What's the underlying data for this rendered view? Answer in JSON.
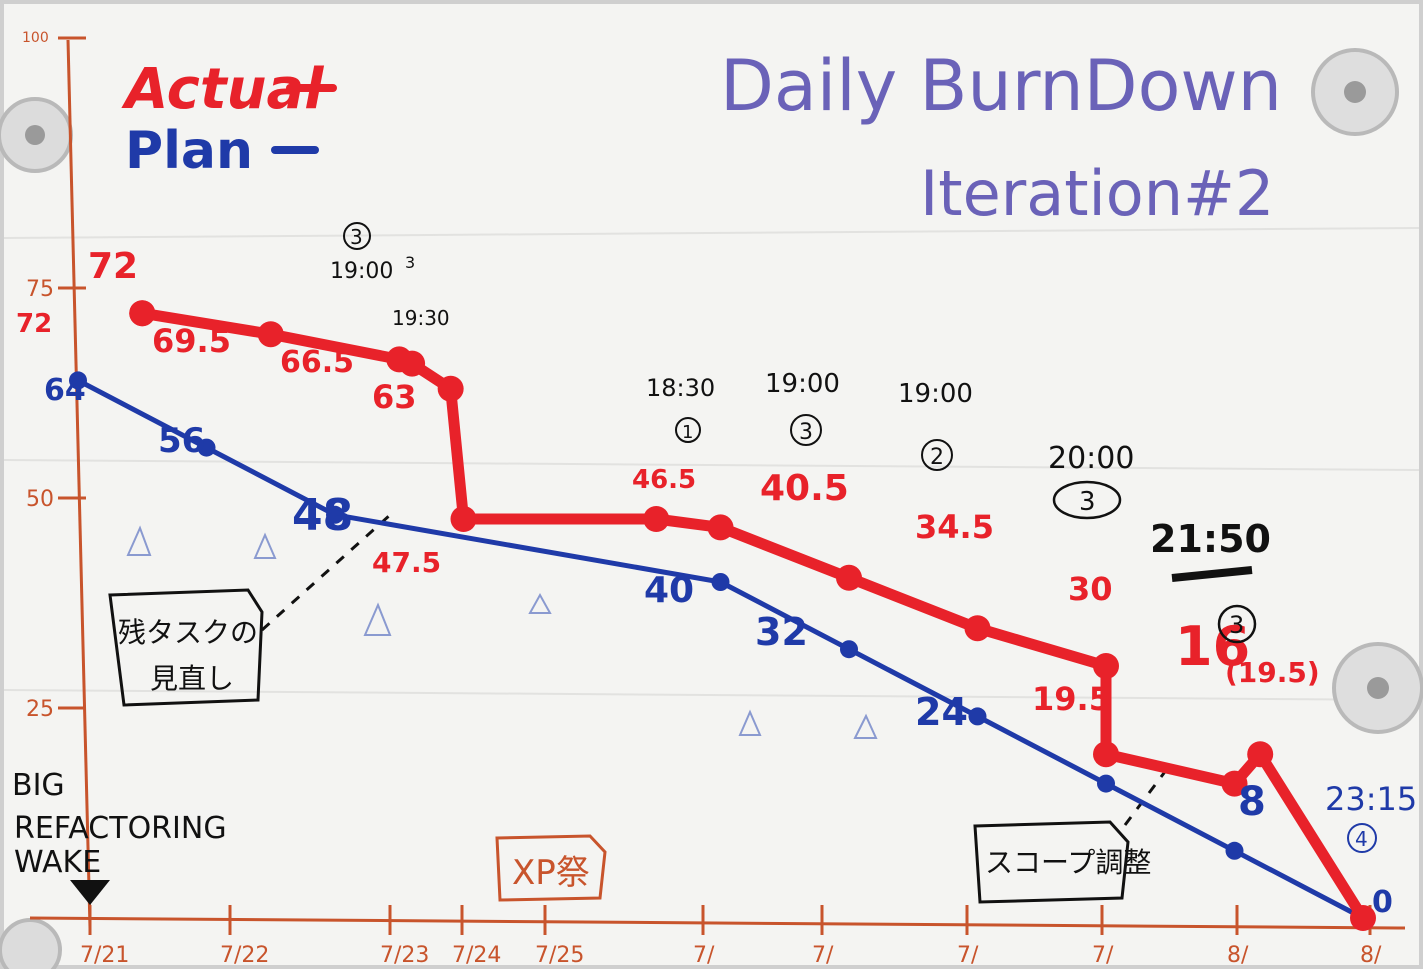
{
  "chart_data": {
    "type": "line",
    "title": "Daily BurnDown",
    "subtitle": "Iteration#2",
    "legend": {
      "position": "top-left",
      "entries": [
        {
          "label": "Actual",
          "color": "#e8222a"
        },
        {
          "label": "Plan",
          "color": "#1f3aa8"
        }
      ]
    },
    "y_ticks": [
      "100",
      "75",
      "50",
      "25"
    ],
    "ylim": [
      0,
      100
    ],
    "x_ticks": [
      "7/21",
      "7/22",
      "7/23",
      "7/24",
      "7/25",
      "7/",
      "7/",
      "7/",
      "7/",
      "8/",
      "8/"
    ],
    "series": [
      {
        "name": "Actual",
        "color": "#e8222a",
        "points": [
          {
            "x": 0.5,
            "y": 72
          },
          {
            "x": 0.5,
            "y": 72
          },
          {
            "x": 1.5,
            "y": 69.5
          },
          {
            "x": 2.5,
            "y": 66.5
          },
          {
            "x": 2.6,
            "y": 66
          },
          {
            "x": 2.9,
            "y": 63
          },
          {
            "x": 3.0,
            "y": 47.5
          },
          {
            "x": 4.5,
            "y": 47.5
          },
          {
            "x": 5.0,
            "y": 46.5
          },
          {
            "x": 6.0,
            "y": 40.5
          },
          {
            "x": 7.0,
            "y": 34.5
          },
          {
            "x": 8.0,
            "y": 30
          },
          {
            "x": 8.0,
            "y": 19.5
          },
          {
            "x": 9.0,
            "y": 16
          },
          {
            "x": 9.2,
            "y": 19.5
          },
          {
            "x": 10.0,
            "y": 0
          }
        ]
      },
      {
        "name": "Plan",
        "color": "#1f3aa8",
        "points": [
          {
            "x": 0.0,
            "y": 64
          },
          {
            "x": 1.0,
            "y": 56
          },
          {
            "x": 2.0,
            "y": 48
          },
          {
            "x": 5.0,
            "y": 40
          },
          {
            "x": 6.0,
            "y": 32
          },
          {
            "x": 7.0,
            "y": 24
          },
          {
            "x": 8.0,
            "y": 16
          },
          {
            "x": 9.0,
            "y": 8
          },
          {
            "x": 10.0,
            "y": 0
          }
        ]
      }
    ],
    "data_labels_actual": [
      "72",
      "72",
      "69.5",
      "66.5",
      "63",
      "47.5",
      "46.5",
      "40.5",
      "34.5",
      "30",
      "19.5",
      "16",
      "(19.5)"
    ],
    "data_labels_plan": [
      "64",
      "56",
      "48",
      "40",
      "32",
      "24",
      "8",
      "0"
    ],
    "time_notes": [
      {
        "time": "19:00",
        "circle": "3"
      },
      {
        "time": "19:30",
        "circle": "3"
      },
      {
        "time": "18:30",
        "circle": "1"
      },
      {
        "time": "19:00",
        "circle": "3"
      },
      {
        "time": "19:00",
        "circle": "2"
      },
      {
        "time": "20:00",
        "circle": "3"
      },
      {
        "time": "21:50",
        "circle": "3"
      },
      {
        "time": "23:15",
        "circle": "4"
      }
    ],
    "annotations": [
      "残タスクの見直し",
      "XP祭",
      "スコープ調整",
      "BIG REFACTORING WAKE"
    ]
  }
}
